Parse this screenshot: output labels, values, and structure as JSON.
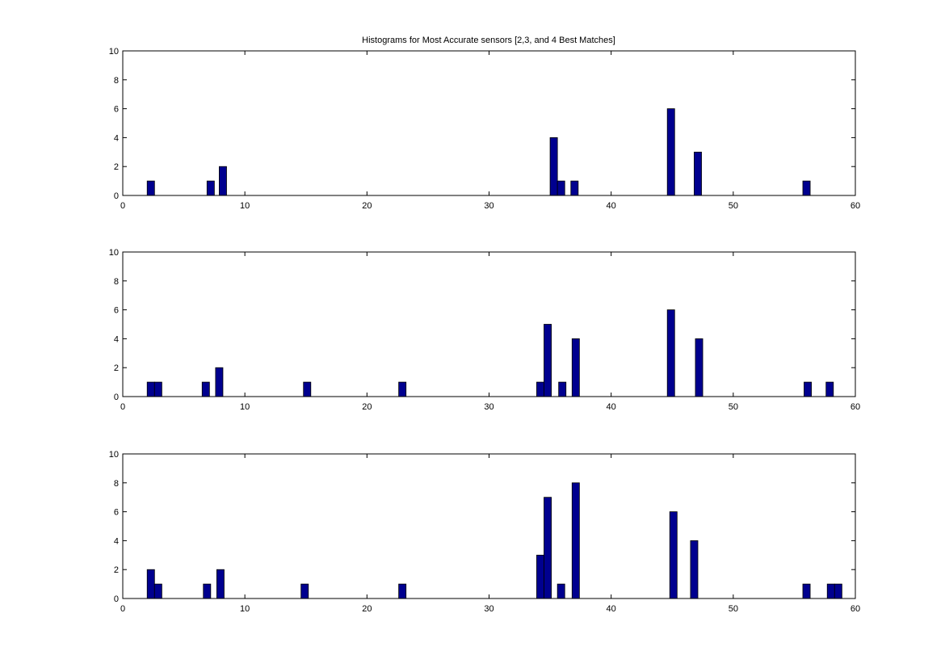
{
  "figure": {
    "title": "Histograms for Most Accurate sensors [2,3, and 4 Best Matches]"
  },
  "colors": {
    "bar_fill": "#00008f",
    "bar_edge": "#000000",
    "axes": "#000000",
    "background": "#ffffff"
  },
  "chart_data": [
    {
      "type": "bar",
      "title": "Histograms for Most Accurate sensors [2,3, and 4 Best Matches]",
      "xlabel": "",
      "ylabel": "",
      "xlim": [
        0,
        60
      ],
      "ylim": [
        0,
        10
      ],
      "xticks": [
        0,
        10,
        20,
        30,
        40,
        50,
        60
      ],
      "yticks": [
        0,
        2,
        4,
        6,
        8,
        10
      ],
      "grid": false,
      "bin_width": 0.6,
      "bars": [
        {
          "x": 2.3,
          "value": 1
        },
        {
          "x": 7.2,
          "value": 1
        },
        {
          "x": 8.2,
          "value": 2
        },
        {
          "x": 35.3,
          "value": 4
        },
        {
          "x": 35.9,
          "value": 1
        },
        {
          "x": 37.0,
          "value": 1
        },
        {
          "x": 44.9,
          "value": 6
        },
        {
          "x": 47.1,
          "value": 3
        },
        {
          "x": 56.0,
          "value": 1
        }
      ]
    },
    {
      "type": "bar",
      "title": "",
      "xlabel": "",
      "ylabel": "",
      "xlim": [
        0,
        60
      ],
      "ylim": [
        0,
        10
      ],
      "xticks": [
        0,
        10,
        20,
        30,
        40,
        50,
        60
      ],
      "yticks": [
        0,
        2,
        4,
        6,
        8,
        10
      ],
      "grid": false,
      "bin_width": 0.6,
      "bars": [
        {
          "x": 2.3,
          "value": 1
        },
        {
          "x": 2.9,
          "value": 1
        },
        {
          "x": 6.8,
          "value": 1
        },
        {
          "x": 7.9,
          "value": 2
        },
        {
          "x": 15.1,
          "value": 1
        },
        {
          "x": 22.9,
          "value": 1
        },
        {
          "x": 34.2,
          "value": 1
        },
        {
          "x": 34.8,
          "value": 5
        },
        {
          "x": 36.0,
          "value": 1
        },
        {
          "x": 37.1,
          "value": 4
        },
        {
          "x": 44.9,
          "value": 6
        },
        {
          "x": 47.2,
          "value": 4
        },
        {
          "x": 56.1,
          "value": 1
        },
        {
          "x": 57.9,
          "value": 1
        }
      ]
    },
    {
      "type": "bar",
      "title": "",
      "xlabel": "",
      "ylabel": "",
      "xlim": [
        0,
        60
      ],
      "ylim": [
        0,
        10
      ],
      "xticks": [
        0,
        10,
        20,
        30,
        40,
        50,
        60
      ],
      "yticks": [
        0,
        2,
        4,
        6,
        8,
        10
      ],
      "grid": false,
      "bin_width": 0.6,
      "bars": [
        {
          "x": 2.3,
          "value": 2
        },
        {
          "x": 2.9,
          "value": 1
        },
        {
          "x": 6.9,
          "value": 1
        },
        {
          "x": 8.0,
          "value": 2
        },
        {
          "x": 14.9,
          "value": 1
        },
        {
          "x": 22.9,
          "value": 1
        },
        {
          "x": 34.2,
          "value": 3
        },
        {
          "x": 34.8,
          "value": 7
        },
        {
          "x": 35.9,
          "value": 1
        },
        {
          "x": 37.1,
          "value": 8
        },
        {
          "x": 45.1,
          "value": 6
        },
        {
          "x": 46.8,
          "value": 4
        },
        {
          "x": 56.0,
          "value": 1
        },
        {
          "x": 58.0,
          "value": 1
        },
        {
          "x": 58.6,
          "value": 1
        }
      ]
    }
  ]
}
